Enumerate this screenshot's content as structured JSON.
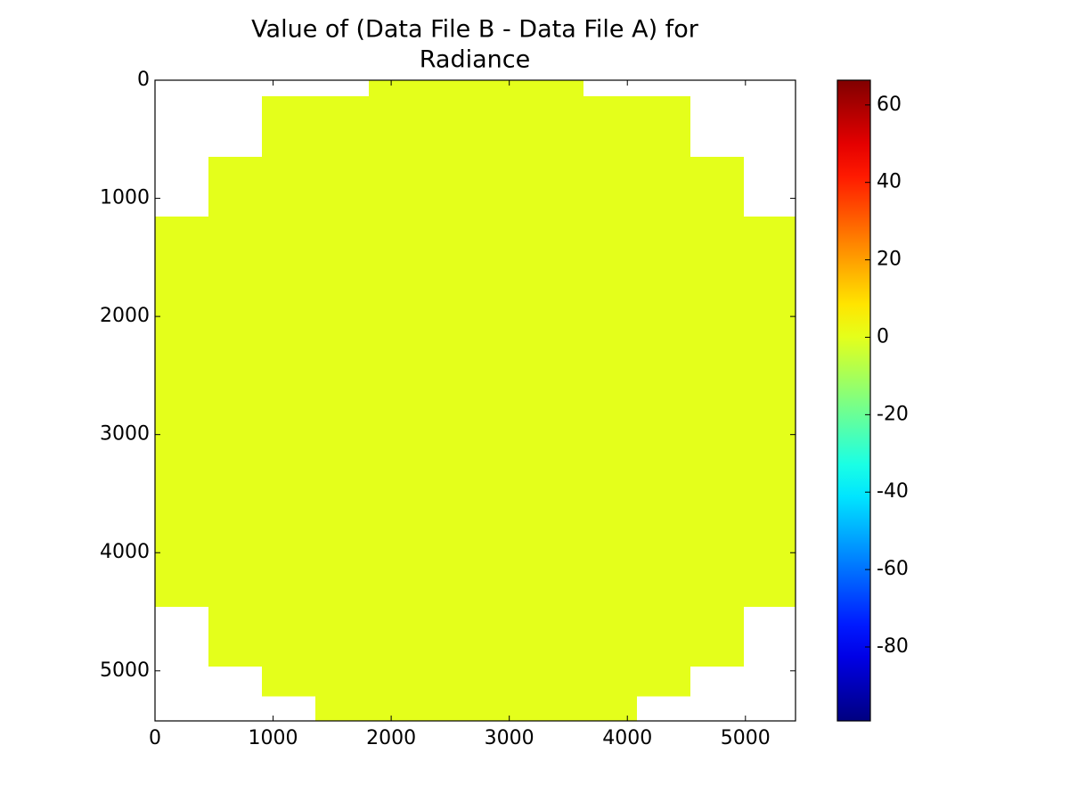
{
  "chart_data": {
    "type": "image",
    "title": [
      "Value of (Data File B - Data File A) for",
      "Radiance"
    ],
    "colormap": "jet",
    "fill_value": 0,
    "regions": [
      {
        "rows": [
          0,
          136
        ],
        "cols": [
          1810,
          3627
        ]
      },
      {
        "rows": [
          136,
          648
        ],
        "cols": [
          905,
          4532
        ]
      },
      {
        "rows": [
          648,
          1153
        ],
        "cols": [
          452,
          4985
        ]
      },
      {
        "rows": [
          1153,
          4457
        ],
        "cols": [
          0,
          5424
        ]
      },
      {
        "rows": [
          4457,
          4962
        ],
        "cols": [
          452,
          4985
        ]
      },
      {
        "rows": [
          4962,
          5218
        ],
        "cols": [
          905,
          4532
        ]
      },
      {
        "rows": [
          5218,
          5424
        ],
        "cols": [
          1357,
          4080
        ]
      }
    ],
    "xlim": [
      0,
      5424
    ],
    "ylim": [
      5424,
      0
    ],
    "xticks": [
      0,
      1000,
      2000,
      3000,
      4000,
      5000
    ],
    "yticks": [
      0,
      1000,
      2000,
      3000,
      4000,
      5000
    ],
    "clim": [
      -99.1,
      66.4
    ],
    "cticks": [
      60,
      40,
      20,
      0,
      -20,
      -40,
      -60,
      -80
    ]
  }
}
